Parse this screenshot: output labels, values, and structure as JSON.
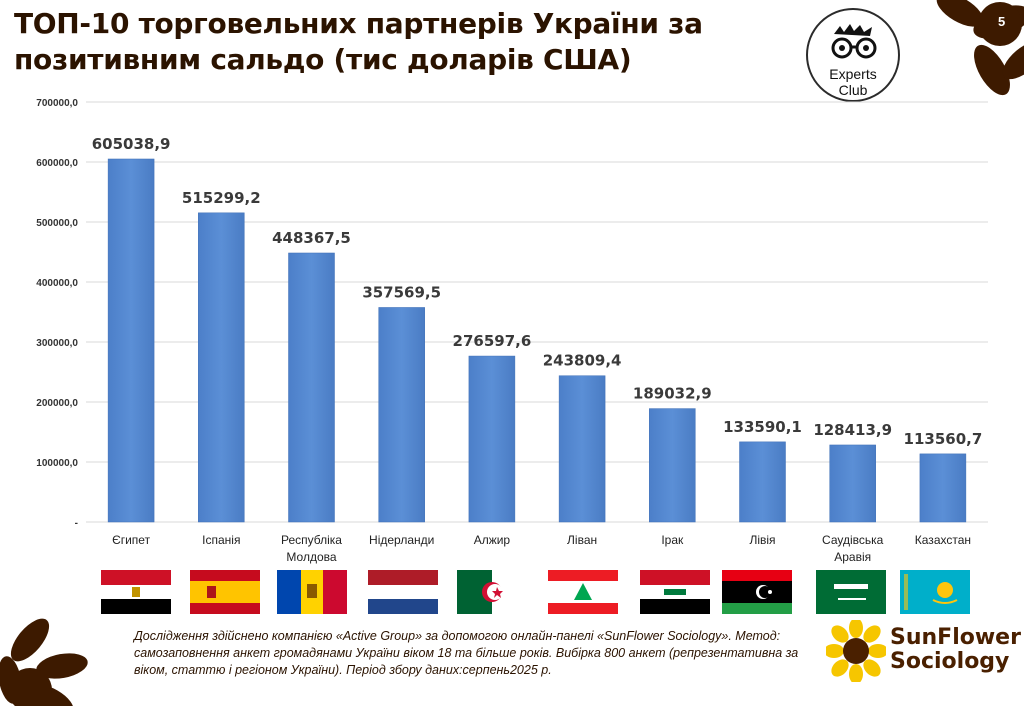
{
  "page": {
    "title": "ТОП-10 торговельних партнерів України за позитивним сальдо (тис доларів США)",
    "page_number": "5",
    "logo_line1": "Experts",
    "logo_line2": "Club",
    "footnote": "Дослідження здійснено компанією «Active Group» за допомогою онлайн-панелі «SunFlower Sociology». Метод: самозаповнення анкет громадянами України віком 18 та більше років. Вибірка 800 анкет (репрезентативна за віком, статтю і регіоном України). Період збору даних:серпень2025 р.",
    "brand_line1": "SunFlower",
    "brand_line2": "Sociology"
  },
  "colors": {
    "bar": "#5b8fd6",
    "brand": "#4a2000",
    "grid": "#d9d9d9"
  },
  "chart_data": {
    "type": "bar",
    "categories": [
      "Єгипет",
      "Іспанія",
      "Республіка Молдова",
      "Нідерланди",
      "Алжир",
      "Ліван",
      "Ірак",
      "Лівія",
      "Саудівська Аравія",
      "Казахстан"
    ],
    "category_lines": [
      [
        "Єгипет"
      ],
      [
        "Іспанія"
      ],
      [
        "Республіка",
        "Молдова"
      ],
      [
        "Нідерланди"
      ],
      [
        "Алжир"
      ],
      [
        "Ліван"
      ],
      [
        "Ірак"
      ],
      [
        "Лівія"
      ],
      [
        "Саудівська",
        "Аравія"
      ],
      [
        "Казахстан"
      ]
    ],
    "values": [
      605038.9,
      515299.2,
      448367.5,
      357569.5,
      276597.6,
      243809.4,
      189032.9,
      133590.1,
      128413.9,
      113560.7
    ],
    "value_labels": [
      "605038,9",
      "515299,2",
      "448367,5",
      "357569,5",
      "276597,6",
      "243809,4",
      "189032,9",
      "133590,1",
      "128413,9",
      "113560,7"
    ],
    "yticks": [
      "-",
      "100000,0",
      "200000,0",
      "300000,0",
      "400000,0",
      "500000,0",
      "600000,0",
      "700000,0"
    ],
    "ylim": [
      0,
      700000
    ],
    "grid": true,
    "title": "",
    "xlabel": "",
    "ylabel": ""
  },
  "flags": [
    "egypt-flag",
    "spain-flag",
    "moldova-flag",
    "netherlands-flag",
    "algeria-flag",
    "lebanon-flag",
    "iraq-flag",
    "libya-flag",
    "saudi-arabia-flag",
    "kazakhstan-flag"
  ]
}
